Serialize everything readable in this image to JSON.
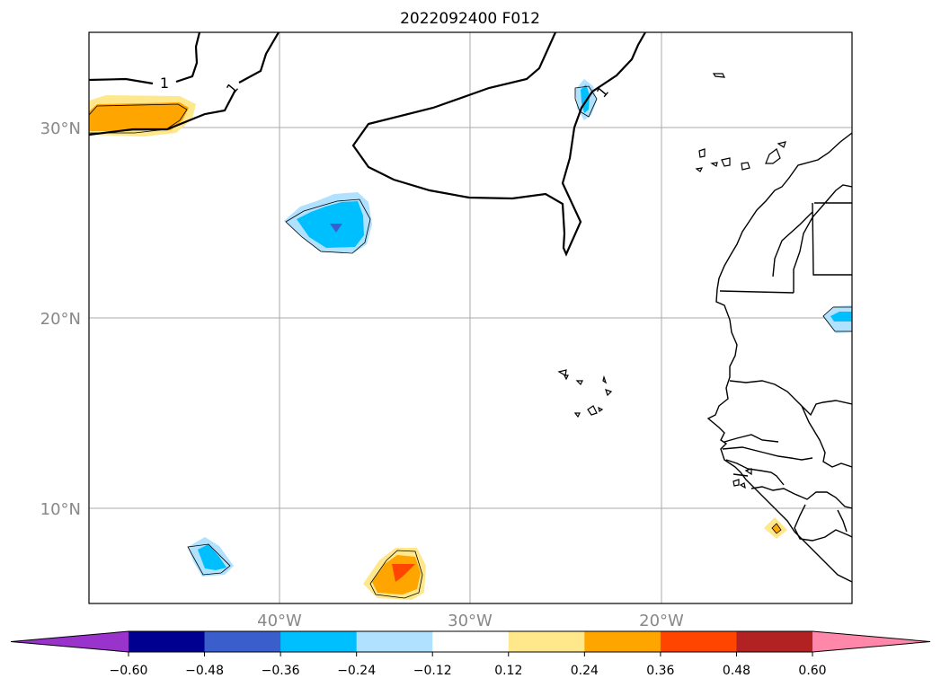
{
  "title": "2022092400 F012",
  "map": {
    "lat_labels": [
      "30°N",
      "20°N",
      "10°N"
    ],
    "lon_labels": [
      "40°W",
      "30°W",
      "20°W"
    ],
    "grid_color": "#aaaaaa",
    "axis_label_color": "#888888",
    "contour_label": "1"
  },
  "colorbar": {
    "colors": [
      "#9933cc",
      "#000090",
      "#3a5fcd",
      "#00bfff",
      "#b0e2ff",
      "#ffffff",
      "#ffe88c",
      "#ffa500",
      "#ff4500",
      "#b22222",
      "#ff88aa"
    ],
    "tick_labels": [
      "−0.60",
      "−0.48",
      "−0.36",
      "−0.24",
      "−0.12",
      "0.12",
      "0.24",
      "0.36",
      "0.48",
      "0.60"
    ]
  }
}
